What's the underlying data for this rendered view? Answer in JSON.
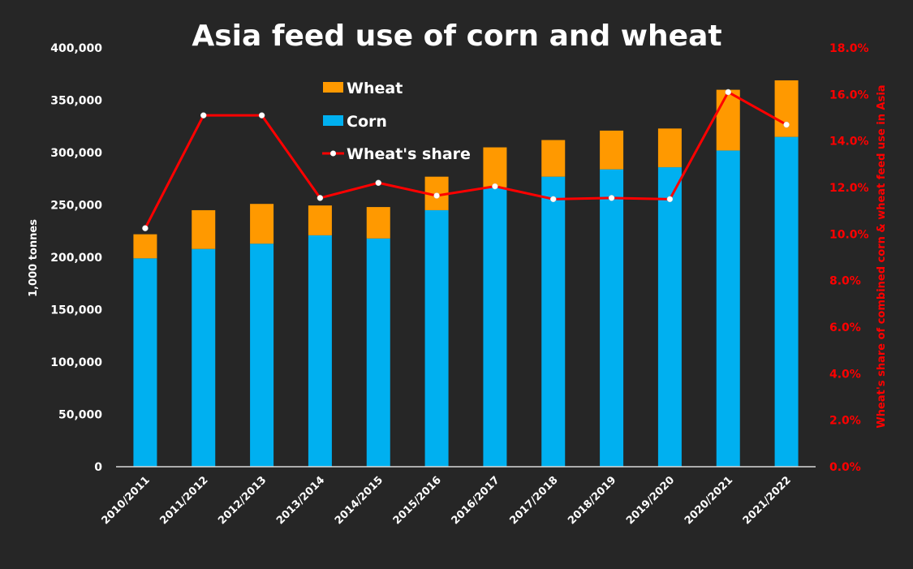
{
  "chart_data": {
    "type": "bar",
    "subtype": "stacked-bar-with-line",
    "title": "Asia feed use of corn and wheat",
    "xlabel": "",
    "ylabel": "1,000 tonnes",
    "y2label": "Wheat's share of combined corn & wheat feed use in Asia",
    "ylim": [
      0,
      400000
    ],
    "y2lim": [
      0,
      0.18
    ],
    "yticks": [
      "0",
      "50,000",
      "100,000",
      "150,000",
      "200,000",
      "250,000",
      "300,000",
      "350,000",
      "400,000"
    ],
    "ytick_values": [
      0,
      50000,
      100000,
      150000,
      200000,
      250000,
      300000,
      350000,
      400000
    ],
    "y2ticks": [
      "0.0%",
      "2.0%",
      "4.0%",
      "6.0%",
      "8.0%",
      "10.0%",
      "12.0%",
      "14.0%",
      "16.0%",
      "18.0%"
    ],
    "y2tick_values": [
      0,
      0.02,
      0.04,
      0.06,
      0.08,
      0.1,
      0.12,
      0.14,
      0.16,
      0.18
    ],
    "categories": [
      "2010/2011",
      "2011/2012",
      "2012/2013",
      "2013/2014",
      "2014/2015",
      "2015/2016",
      "2016/2017",
      "2017/2018",
      "2018/2019",
      "2019/2020",
      "2020/2021",
      "2021/2022"
    ],
    "series": [
      {
        "name": "Corn",
        "type": "bar",
        "axis": "left",
        "color": "#00b0f0",
        "values": [
          199000,
          208000,
          213000,
          221000,
          218000,
          245000,
          267000,
          277000,
          284000,
          286000,
          302000,
          315000
        ]
      },
      {
        "name": "Wheat",
        "type": "bar",
        "axis": "left",
        "color": "#ff9900",
        "values": [
          23000,
          37000,
          38000,
          28500,
          30000,
          32000,
          38000,
          35000,
          37000,
          37000,
          58000,
          54000
        ]
      },
      {
        "name": "Wheat's share",
        "type": "line",
        "axis": "right",
        "color": "#ff0000",
        "marker_color": "#ffffff",
        "values": [
          0.1025,
          0.151,
          0.151,
          0.1155,
          0.122,
          0.1165,
          0.1205,
          0.115,
          0.1155,
          0.115,
          0.161,
          0.147
        ]
      }
    ],
    "legend": {
      "position": "top-center",
      "entries": [
        "Wheat",
        "Corn",
        "Wheat's share"
      ]
    },
    "grid": false
  },
  "colors": {
    "background": "#262626",
    "corn": "#00b0f0",
    "wheat": "#ff9900",
    "share_line": "#ff0000",
    "axis_text": "#ffffff",
    "right_axis_text": "#ff0000"
  }
}
